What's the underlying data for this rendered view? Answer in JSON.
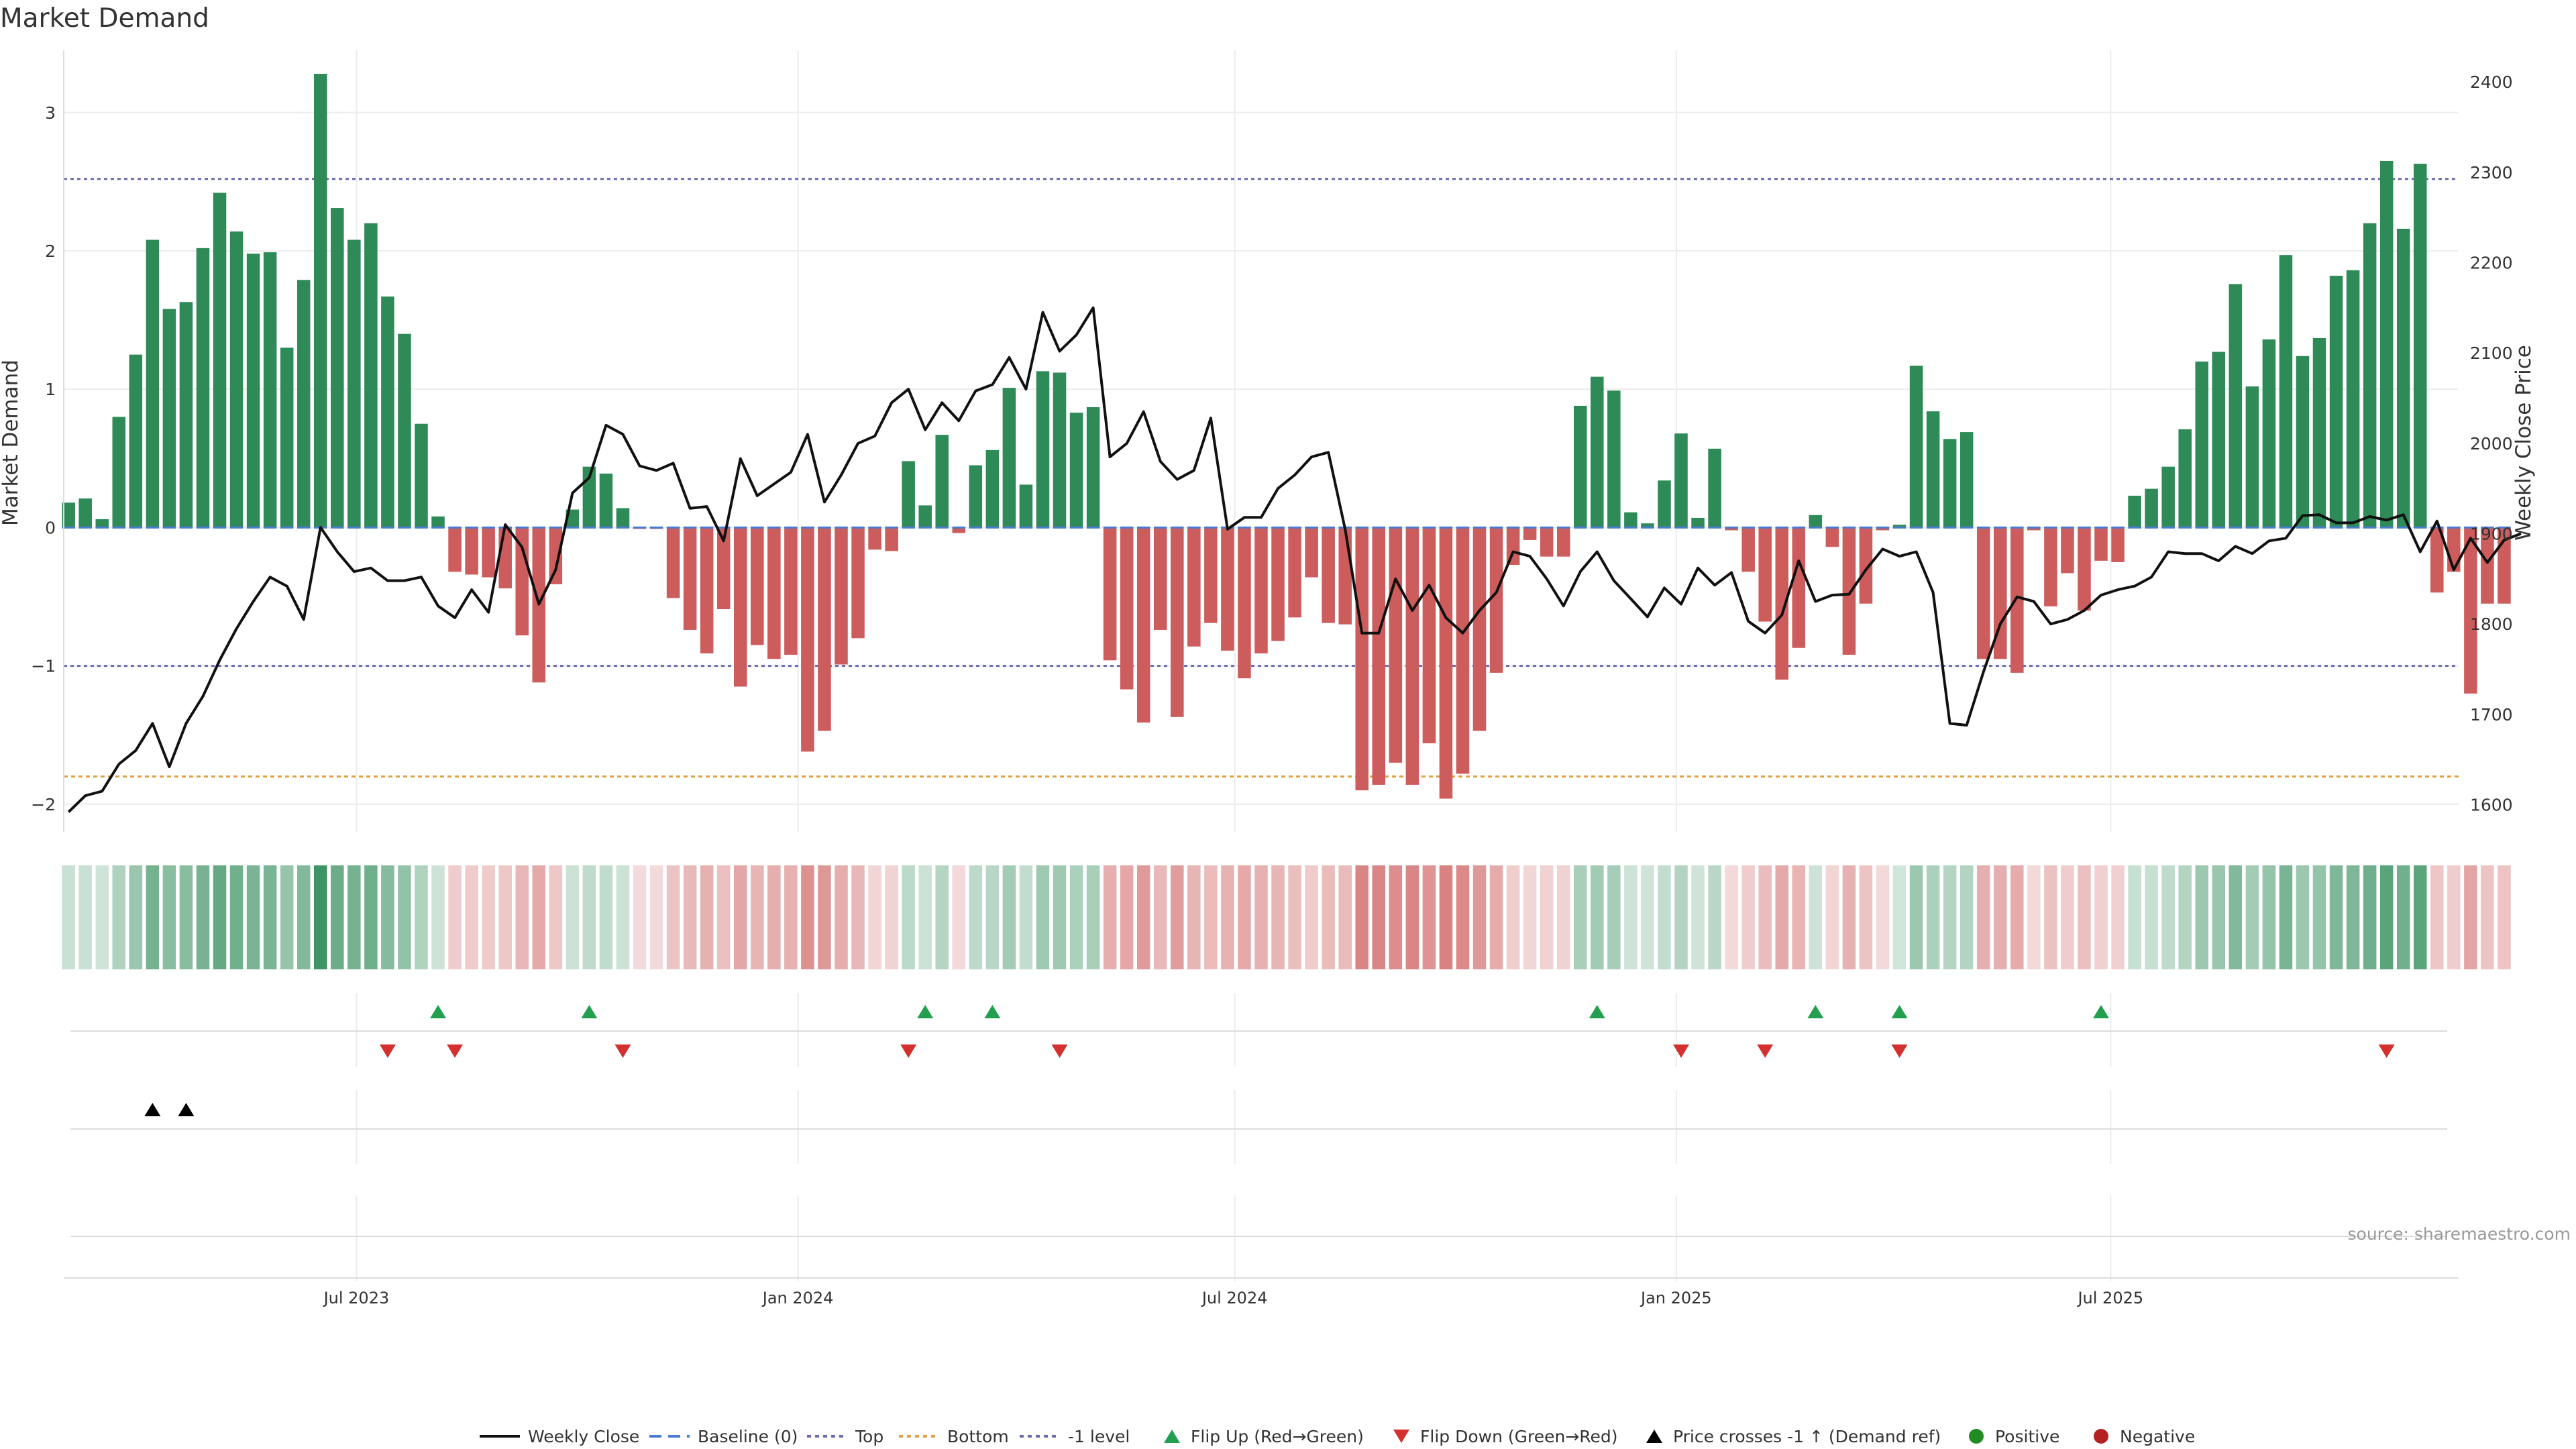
{
  "chart_data": {
    "type": "bar+line",
    "title": "Market Demand",
    "ylabel_left": "Market Demand",
    "ylabel_right": "Weekly Close Price",
    "ylim_left": [
      -2.2,
      3.45
    ],
    "yticks_left": [
      3,
      2,
      1,
      0,
      -1,
      -2
    ],
    "ytick_labels_left": [
      "3",
      "2",
      "1",
      "0",
      "−1",
      "−2"
    ],
    "ylim_right": [
      1570,
      2435
    ],
    "yticks_right": [
      2400,
      2300,
      2200,
      2100,
      2000,
      1900,
      1800,
      1700,
      1600
    ],
    "x_start": "2023-03-01",
    "x_end": "2025-11-23",
    "week_start": "2023-03-03",
    "x_ticks": [
      {
        "date": "2023-07-01",
        "label": "Jul 2023"
      },
      {
        "date": "2024-01-01",
        "label": "Jan 2024"
      },
      {
        "date": "2024-07-01",
        "label": "Jul 2024"
      },
      {
        "date": "2025-01-01",
        "label": "Jan 2025"
      },
      {
        "date": "2025-07-01",
        "label": "Jul 2025"
      }
    ],
    "reference_lines": {
      "top": 2.52,
      "bottom": -1.8,
      "minus_one": -1,
      "baseline": 0
    },
    "demand": [
      0.18,
      0.21,
      0.06,
      0.8,
      1.25,
      2.08,
      1.58,
      1.63,
      2.02,
      2.42,
      2.14,
      1.98,
      1.99,
      1.3,
      1.79,
      3.28,
      2.31,
      2.08,
      2.2,
      1.67,
      1.4,
      0.75,
      0.08,
      -0.32,
      -0.34,
      -0.36,
      -0.44,
      -0.78,
      -1.12,
      -0.41,
      0.13,
      0.44,
      0.39,
      0.14,
      -0.01,
      -0.01,
      -0.51,
      -0.74,
      -0.91,
      -0.59,
      -1.15,
      -0.85,
      -0.95,
      -0.92,
      -1.62,
      -1.47,
      -0.99,
      -0.8,
      -0.16,
      -0.17,
      0.48,
      0.16,
      0.67,
      -0.04,
      0.45,
      0.56,
      1.01,
      0.31,
      1.13,
      1.12,
      0.83,
      0.87,
      -0.96,
      -1.17,
      -1.41,
      -0.74,
      -1.37,
      -0.86,
      -0.69,
      -0.89,
      -1.09,
      -0.91,
      -0.82,
      -0.65,
      -0.36,
      -0.69,
      -0.7,
      -1.9,
      -1.86,
      -1.7,
      -1.86,
      -1.56,
      -1.96,
      -1.78,
      -1.47,
      -1.05,
      -0.27,
      -0.09,
      -0.21,
      -0.21,
      0.88,
      1.09,
      0.99,
      0.11,
      0.03,
      0.34,
      0.68,
      0.07,
      0.57,
      -0.02,
      -0.32,
      -0.68,
      -1.1,
      -0.87,
      0.09,
      -0.14,
      -0.92,
      -0.55,
      -0.02,
      0.02,
      1.17,
      0.84,
      0.64,
      0.69,
      -0.95,
      -0.95,
      -1.05,
      -0.02,
      -0.57,
      -0.33,
      -0.6,
      -0.24,
      -0.25,
      0.23,
      0.28,
      0.44,
      0.71,
      1.2,
      1.27,
      1.76,
      1.02,
      1.36,
      1.97,
      1.24,
      1.37,
      1.82,
      1.86,
      2.2,
      2.65,
      2.16,
      2.63,
      -0.47,
      -0.32,
      -1.2,
      -0.55,
      -0.55
    ],
    "close": [
      1592,
      1610,
      1615,
      1645,
      1660,
      1690,
      1642,
      1690,
      1720,
      1760,
      1795,
      1825,
      1852,
      1842,
      1805,
      1907,
      1880,
      1858,
      1862,
      1848,
      1848,
      1852,
      1820,
      1807,
      1838,
      1813,
      1910,
      1885,
      1822,
      1860,
      1945,
      1962,
      2020,
      2010,
      1975,
      1970,
      1978,
      1928,
      1930,
      1892,
      1983,
      1942,
      1955,
      1968,
      2010,
      1935,
      1965,
      2000,
      2008,
      2045,
      2060,
      2015,
      2045,
      2025,
      2058,
      2065,
      2095,
      2060,
      2145,
      2102,
      2120,
      2150,
      1985,
      2000,
      2035,
      1980,
      1960,
      1970,
      2028,
      1905,
      1918,
      1918,
      1950,
      1965,
      1985,
      1990,
      1905,
      1790,
      1790,
      1850,
      1815,
      1843,
      1807,
      1790,
      1815,
      1835,
      1880,
      1875,
      1850,
      1820,
      1858,
      1880,
      1848,
      1828,
      1808,
      1840,
      1822,
      1862,
      1843,
      1857,
      1803,
      1790,
      1810,
      1870,
      1825,
      1832,
      1833,
      1860,
      1883,
      1875,
      1880,
      1835,
      1690,
      1688,
      1747,
      1800,
      1830,
      1825,
      1800,
      1805,
      1815,
      1832,
      1838,
      1842,
      1852,
      1880,
      1878,
      1878,
      1870,
      1886,
      1878,
      1892,
      1895,
      1920,
      1921,
      1912,
      1912,
      1919,
      1915,
      1921,
      1880,
      1914,
      1860,
      1895,
      1868,
      1893,
      1900
    ],
    "flip_up_weeks": [
      22,
      31,
      51,
      55,
      91,
      104,
      109,
      121
    ],
    "flip_down_weeks": [
      19,
      23,
      33,
      50,
      59,
      96,
      101,
      109,
      138
    ],
    "price_cross_weeks": [
      5,
      7
    ],
    "legend": [
      "Weekly Close",
      "Baseline (0)",
      "Top",
      "Bottom",
      "-1 level",
      "Flip Up (Red→Green)",
      "Flip Down (Green→Red)",
      "Price crosses -1 ↑ (Demand ref)",
      "Positive",
      "Negative"
    ],
    "source": "source: sharemaestro.com",
    "colors": {
      "positive": "#2e8b57",
      "negative": "#cd5c5c",
      "close": "#111111",
      "baseline": "#4a7bd0",
      "top": "#6a6ab0",
      "bottom": "#e0a040",
      "minus_one": "#6a6ab0",
      "flip_up": "#22a050",
      "flip_down": "#d43030",
      "cross": "#000000",
      "dot_positive": "#228b22",
      "dot_negative": "#b22222",
      "grid": "#ececec"
    }
  }
}
